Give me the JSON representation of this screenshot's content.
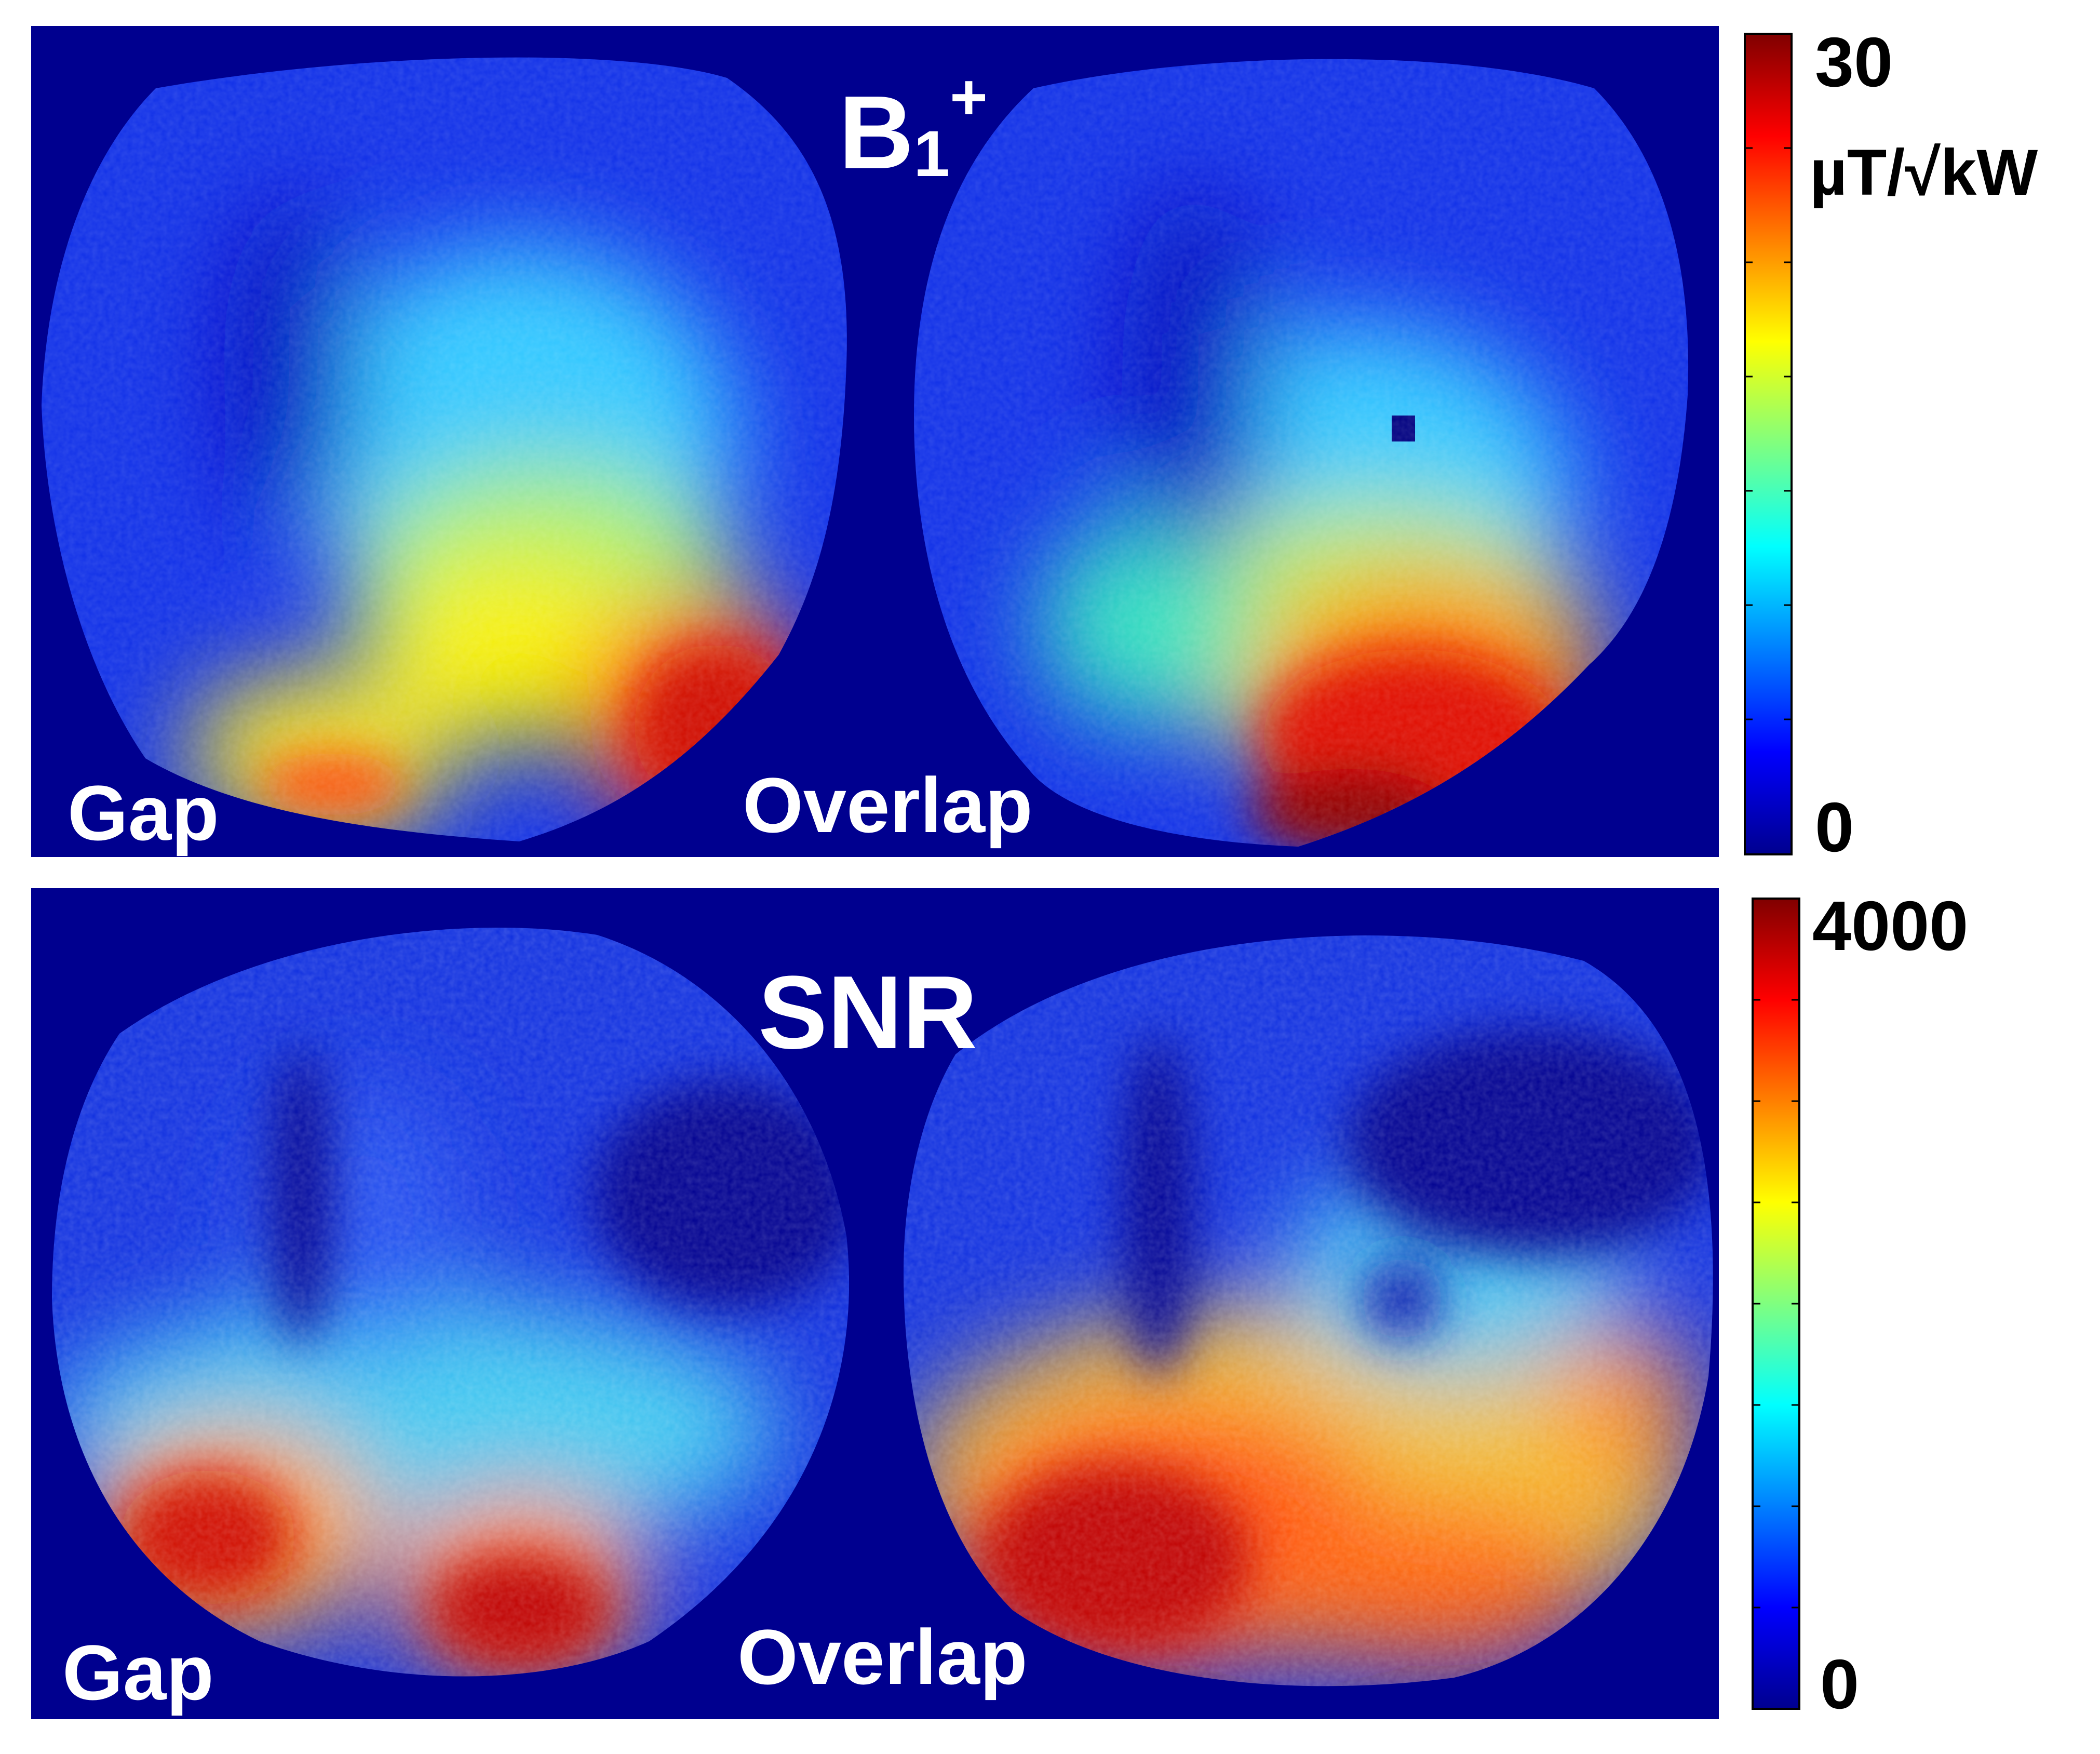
{
  "colors": {
    "background": "#00008f",
    "page": "#ffffff",
    "label_text": "#ffffff",
    "colorbar_text": "#000000",
    "colormap": "jet"
  },
  "panels": [
    {
      "id": "b1",
      "title_main": "B",
      "title_sub": "1",
      "title_sup": "+",
      "labels": {
        "left": "Gap",
        "right": "Overlap"
      },
      "colorbar": {
        "max": "30",
        "unit": "µT/√kW",
        "min": "0"
      }
    },
    {
      "id": "snr",
      "title": "SNR",
      "labels": {
        "left": "Gap",
        "right": "Overlap"
      },
      "colorbar": {
        "max": "4000",
        "min": "0"
      }
    }
  ]
}
